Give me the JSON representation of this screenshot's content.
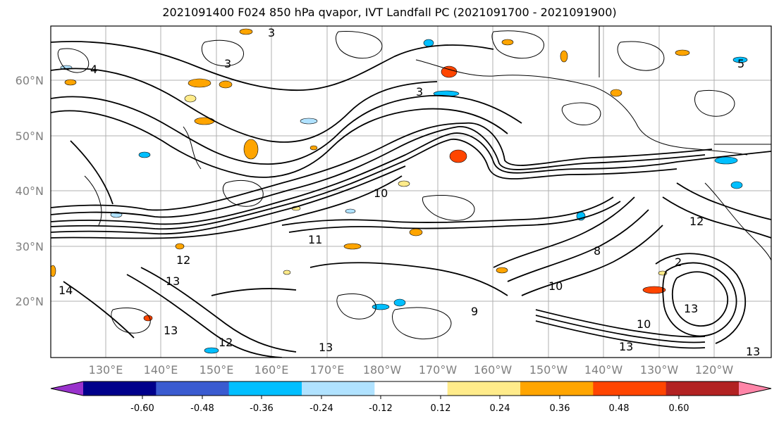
{
  "title": "2021091400 F024 850 hPa qvapor, IVT Landfall PC (2021091700 - 2021091900)",
  "map": {
    "lat_labels": [
      "60°N",
      "50°N",
      "40°N",
      "30°N",
      "20°N"
    ],
    "lon_labels": [
      "130°E",
      "140°E",
      "150°E",
      "160°E",
      "170°E",
      "180°W",
      "170°W",
      "160°W",
      "150°W",
      "140°W",
      "130°W",
      "120°W"
    ],
    "gridlines": true,
    "contour_labels": [
      "3",
      "4",
      "3",
      "3",
      "10",
      "11",
      "12",
      "13",
      "14",
      "12",
      "13",
      "13",
      "10",
      "13",
      "13",
      "9",
      "8",
      "10",
      "13",
      "12",
      "2",
      "5"
    ]
  },
  "colorbar": {
    "tick_labels": [
      "-0.60",
      "-0.48",
      "-0.36",
      "-0.24",
      "-0.12",
      "0.12",
      "0.24",
      "0.36",
      "0.48",
      "0.60"
    ],
    "colors": [
      "#9932cc",
      "#00008b",
      "#3a5bd0",
      "#00bfff",
      "#b0e2ff",
      "#ffffff",
      "#ffeb8a",
      "#ffa500",
      "#ff4500",
      "#b22222",
      "#ff85a8"
    ]
  }
}
